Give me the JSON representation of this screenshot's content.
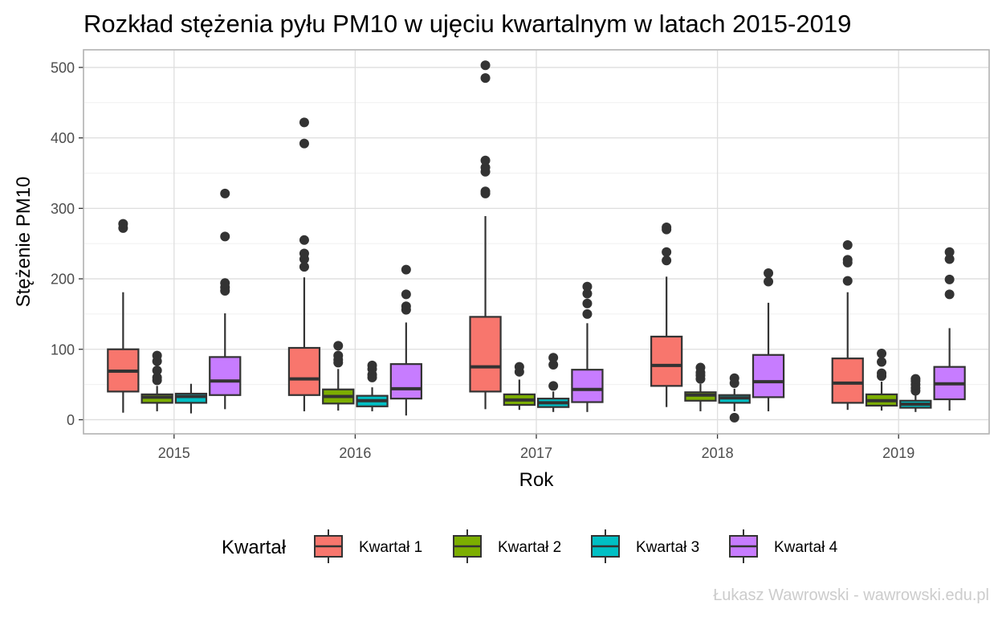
{
  "chart_data": {
    "type": "boxplot",
    "title": "Rozkład stężenia pyłu PM10 w ujęciu kwartalnym w latach 2015-2019",
    "xlabel": "Rok",
    "ylabel": "Stężenie PM10",
    "ylim": [
      -20,
      525
    ],
    "yticks": [
      0,
      100,
      200,
      300,
      400,
      500
    ],
    "grid": true,
    "legend_position": "bottom",
    "caption": "Łukasz Wawrowski - wawrowski.edu.pl",
    "categories": [
      "2015",
      "2016",
      "2017",
      "2018",
      "2019"
    ],
    "legend_title": "Kwartał",
    "series": [
      {
        "name": "Kwartał 1",
        "color": "#F8766D",
        "boxes": [
          {
            "min": 10,
            "q1": 40,
            "median": 69,
            "q3": 100,
            "max": 181,
            "outliers": [
              272,
              278
            ]
          },
          {
            "min": 12,
            "q1": 35,
            "median": 58,
            "q3": 102,
            "max": 202,
            "outliers": [
              217,
              228,
              236,
              255,
              392,
              422
            ]
          },
          {
            "min": 15,
            "q1": 40,
            "median": 75,
            "q3": 146,
            "max": 289,
            "outliers": [
              321,
              324,
              352,
              358,
              368,
              485,
              503
            ]
          },
          {
            "min": 18,
            "q1": 48,
            "median": 77,
            "q3": 118,
            "max": 203,
            "outliers": [
              226,
              238,
              270,
              273
            ]
          },
          {
            "min": 14,
            "q1": 24,
            "median": 52,
            "q3": 87,
            "max": 181,
            "outliers": [
              197,
              223,
              227,
              248
            ]
          }
        ]
      },
      {
        "name": "Kwartał 2",
        "color": "#7CAE00",
        "boxes": [
          {
            "min": 12,
            "q1": 24,
            "median": 32,
            "q3": 36,
            "max": 48,
            "outliers": [
              56,
              60,
              70,
              83,
              91
            ]
          },
          {
            "min": 13,
            "q1": 23,
            "median": 33,
            "q3": 43,
            "max": 72,
            "outliers": [
              81,
              85,
              91,
              105
            ]
          },
          {
            "min": 14,
            "q1": 21,
            "median": 28,
            "q3": 36,
            "max": 57,
            "outliers": [
              68,
              75
            ]
          },
          {
            "min": 12,
            "q1": 27,
            "median": 35,
            "q3": 39,
            "max": 51,
            "outliers": [
              58,
              63,
              67,
              74
            ]
          },
          {
            "min": 13,
            "q1": 20,
            "median": 27,
            "q3": 36,
            "max": 54,
            "outliers": [
              62,
              66,
              82,
              94
            ]
          }
        ]
      },
      {
        "name": "Kwartał 3",
        "color": "#00BFC4",
        "boxes": [
          {
            "min": 9,
            "q1": 24,
            "median": 33,
            "q3": 37,
            "max": 51,
            "outliers": []
          },
          {
            "min": 12,
            "q1": 19,
            "median": 27,
            "q3": 34,
            "max": 46,
            "outliers": [
              60,
              64,
              72,
              77
            ]
          },
          {
            "min": 11,
            "q1": 18,
            "median": 24,
            "q3": 30,
            "max": 40,
            "outliers": [
              48,
              78,
              88
            ]
          },
          {
            "min": 12,
            "q1": 24,
            "median": 31,
            "q3": 35,
            "max": 44,
            "outliers": [
              3,
              52,
              59
            ]
          },
          {
            "min": 11,
            "q1": 17,
            "median": 22,
            "q3": 27,
            "max": 36,
            "outliers": [
              41,
              45,
              50,
              55,
              58
            ]
          }
        ]
      },
      {
        "name": "Kwartał 4",
        "color": "#C77CFF",
        "boxes": [
          {
            "min": 15,
            "q1": 35,
            "median": 55,
            "q3": 89,
            "max": 151,
            "outliers": [
              183,
              188,
              194,
              260,
              321
            ]
          },
          {
            "min": 6,
            "q1": 30,
            "median": 44,
            "q3": 79,
            "max": 138,
            "outliers": [
              156,
              161,
              178,
              213
            ]
          },
          {
            "min": 11,
            "q1": 25,
            "median": 43,
            "q3": 71,
            "max": 137,
            "outliers": [
              150,
              165,
              179,
              189
            ]
          },
          {
            "min": 12,
            "q1": 32,
            "median": 54,
            "q3": 92,
            "max": 166,
            "outliers": [
              196,
              208
            ]
          },
          {
            "min": 13,
            "q1": 29,
            "median": 51,
            "q3": 75,
            "max": 130,
            "outliers": [
              178,
              199,
              228,
              238
            ]
          }
        ]
      }
    ]
  }
}
